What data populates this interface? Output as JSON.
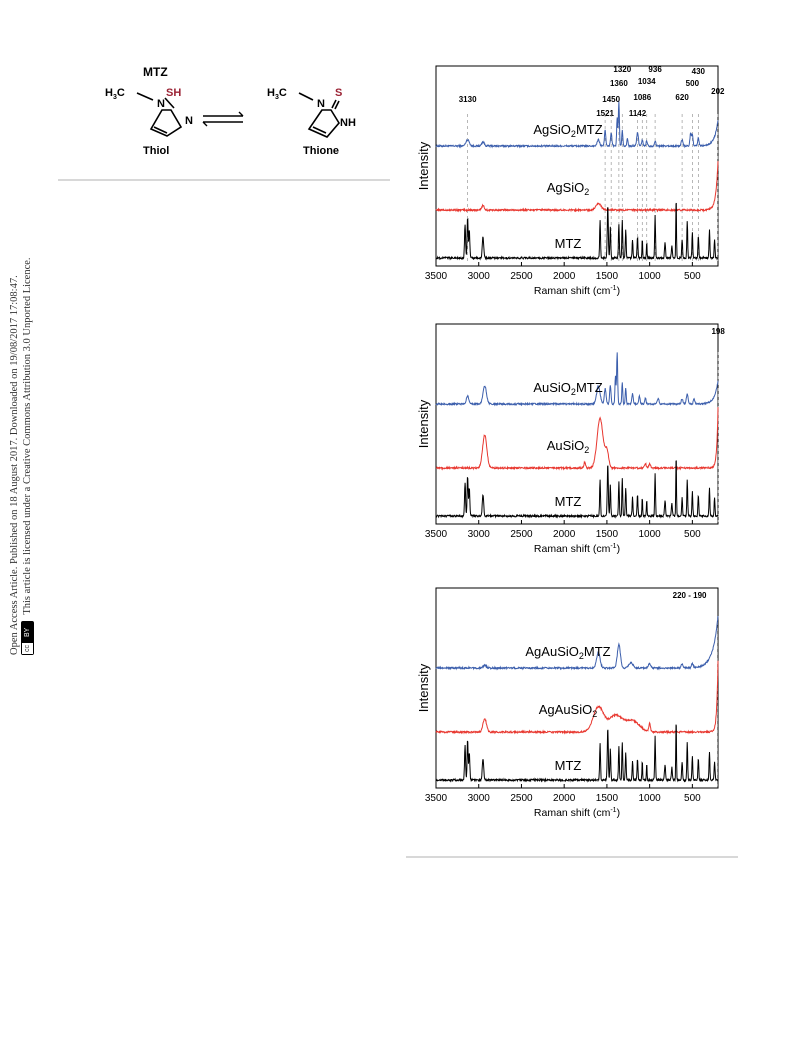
{
  "sidebar": {
    "line1": "Open Access Article. Published on 18 August 2017. Downloaded on 19/08/2017 17:08:47.",
    "line2": "This article is licensed under a Creative Commons Attribution 3.0 Unported Licence.",
    "badge_cc": "cc",
    "badge_by": "BY"
  },
  "scheme": {
    "title": "MTZ",
    "thiol_label": "Thiol",
    "thione_label": "Thione",
    "atoms": {
      "h3c": "H",
      "h3c_sub": "3",
      "c": "C",
      "sh": "SH",
      "n": "N",
      "s": "S",
      "nh": "NH"
    },
    "s_color": "#9b2335"
  },
  "colors": {
    "blue": "#3b5eac",
    "red": "#e8372f",
    "black": "#000000",
    "ref_line": "#999999"
  },
  "chart_data": [
    {
      "type": "line",
      "xlabel_main": "Raman shift (cm",
      "xlabel_sup": "-1",
      "xlabel_end": ")",
      "ylabel": "Intensity",
      "xlim": [
        3500,
        200
      ],
      "xticks": [
        "3500",
        "3000",
        "2500",
        "2000",
        "1500",
        "1000",
        "500"
      ],
      "series": [
        {
          "name_main": "AgSiO",
          "name_sub": "2",
          "name_end": "MTZ",
          "color": "#3b5eac"
        },
        {
          "name_main": "AgSiO",
          "name_sub": "2",
          "name_end": "",
          "color": "#e8372f"
        },
        {
          "name_main": "MTZ",
          "name_sub": "",
          "name_end": "",
          "color": "#000000"
        }
      ],
      "peak_labels": [
        "3130",
        "1521",
        "1450",
        "1360",
        "1320",
        "1142",
        "1086",
        "1034",
        "936",
        "620",
        "500",
        "430",
        "202"
      ],
      "peak_positions": [
        3130,
        1521,
        1450,
        1360,
        1320,
        1142,
        1086,
        1034,
        936,
        620,
        500,
        430,
        202
      ]
    },
    {
      "type": "line",
      "xlabel_main": "Raman shift (cm",
      "xlabel_sup": "-1",
      "xlabel_end": ")",
      "ylabel": "Intensity",
      "xlim": [
        3500,
        200
      ],
      "xticks": [
        "3500",
        "3000",
        "2500",
        "2000",
        "1500",
        "1000",
        "500"
      ],
      "series": [
        {
          "name_main": "AuSiO",
          "name_sub": "2",
          "name_end": "MTZ",
          "color": "#3b5eac"
        },
        {
          "name_main": "AuSiO",
          "name_sub": "2",
          "name_end": "",
          "color": "#e8372f"
        },
        {
          "name_main": "MTZ",
          "name_sub": "",
          "name_end": "",
          "color": "#000000"
        }
      ],
      "peak_labels": [
        "198"
      ],
      "peak_positions": [
        198
      ]
    },
    {
      "type": "line",
      "xlabel_main": "Raman shift (cm",
      "xlabel_sup": "-1",
      "xlabel_end": ")",
      "ylabel": "Intensity",
      "xlim": [
        3500,
        200
      ],
      "xticks": [
        "3500",
        "3000",
        "2500",
        "2000",
        "1500",
        "1000",
        "500"
      ],
      "series": [
        {
          "name_main": "AgAuSiO",
          "name_sub": "2",
          "name_end": "MTZ",
          "color": "#3b5eac"
        },
        {
          "name_main": "AgAuSiO",
          "name_sub": "2",
          "name_end": "",
          "color": "#e8372f"
        },
        {
          "name_main": "MTZ",
          "name_sub": "",
          "name_end": "",
          "color": "#000000"
        }
      ],
      "peak_labels": [
        "220 - 190"
      ],
      "peak_positions": [
        205
      ]
    }
  ]
}
